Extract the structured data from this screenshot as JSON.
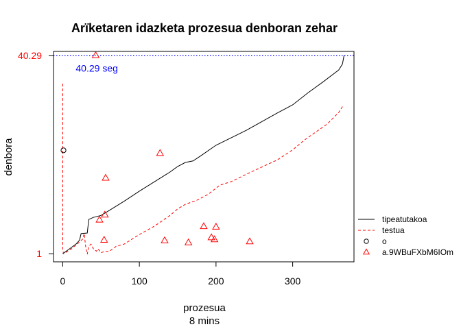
{
  "chart_data": {
    "type": "line",
    "title": "Arïketaren idazketa prozesua denboran zehar",
    "xlabel": "prozesua",
    "xlabel_sub": "8 mins",
    "ylabel": "denbora",
    "xlim": [
      -12,
      380
    ],
    "ylim": [
      -0.6,
      41.1
    ],
    "x_ticks": [
      0,
      100,
      200,
      300
    ],
    "y_ticks": [
      {
        "value": 1,
        "label": "1"
      },
      {
        "value": 40.29,
        "label": "40.29"
      }
    ],
    "reference_line": {
      "y": 40.29,
      "label": "40.29 seg",
      "label_x": 17,
      "label_y": 37.8,
      "color": "#0000ff"
    },
    "series": [
      {
        "name": "tipeatutakoa",
        "style": "solid",
        "color": "#000000",
        "points": [
          [
            0,
            1.0
          ],
          [
            10,
            2.1
          ],
          [
            18,
            3.0
          ],
          [
            22,
            3.7
          ],
          [
            24,
            5.0
          ],
          [
            32,
            5.1
          ],
          [
            34,
            7.8
          ],
          [
            40,
            8.2
          ],
          [
            50,
            8.6
          ],
          [
            60,
            9.5
          ],
          [
            80,
            11.4
          ],
          [
            100,
            13.4
          ],
          [
            120,
            15.3
          ],
          [
            140,
            17.2
          ],
          [
            150,
            18.3
          ],
          [
            160,
            19.1
          ],
          [
            170,
            19.4
          ],
          [
            180,
            20.4
          ],
          [
            200,
            22.5
          ],
          [
            220,
            24.0
          ],
          [
            240,
            25.5
          ],
          [
            260,
            27.2
          ],
          [
            280,
            28.9
          ],
          [
            300,
            30.5
          ],
          [
            320,
            32.9
          ],
          [
            340,
            35.1
          ],
          [
            360,
            37.4
          ],
          [
            365,
            38.6
          ],
          [
            367,
            40.3
          ]
        ]
      },
      {
        "name": "testua",
        "style": "dashed",
        "color": "#ff0000",
        "points": [
          [
            0,
            34.7
          ],
          [
            0,
            2.0
          ],
          [
            1,
            1.0
          ],
          [
            10,
            1.8
          ],
          [
            18,
            2.8
          ],
          [
            26,
            3.9
          ],
          [
            28,
            5.0
          ],
          [
            30,
            2.4
          ],
          [
            32,
            0.9
          ],
          [
            34,
            2.5
          ],
          [
            37,
            2.9
          ],
          [
            40,
            2.0
          ],
          [
            44,
            1.5
          ],
          [
            46,
            2.0
          ],
          [
            50,
            1.2
          ],
          [
            55,
            1.5
          ],
          [
            60,
            1.4
          ],
          [
            70,
            2.5
          ],
          [
            80,
            2.9
          ],
          [
            100,
            4.8
          ],
          [
            120,
            6.5
          ],
          [
            140,
            8.6
          ],
          [
            150,
            9.9
          ],
          [
            160,
            10.8
          ],
          [
            175,
            11.6
          ],
          [
            190,
            12.8
          ],
          [
            205,
            14.6
          ],
          [
            220,
            15.3
          ],
          [
            240,
            16.8
          ],
          [
            260,
            18.2
          ],
          [
            280,
            19.6
          ],
          [
            300,
            21.6
          ],
          [
            315,
            23.5
          ],
          [
            330,
            25.1
          ],
          [
            345,
            26.7
          ],
          [
            360,
            29.0
          ],
          [
            366,
            30.4
          ]
        ]
      },
      {
        "name": "o",
        "style": "points",
        "marker": "circle",
        "color": "#000000",
        "points": [
          [
            1,
            21.5
          ]
        ]
      },
      {
        "name": "a.9WBuFXbM6IOm",
        "style": "points",
        "marker": "triangle",
        "color": "#ff0000",
        "points": [
          [
            43,
            40.3
          ],
          [
            56,
            16.0
          ],
          [
            127,
            20.9
          ],
          [
            55,
            8.7
          ],
          [
            48,
            7.7
          ],
          [
            54,
            3.7
          ],
          [
            133,
            3.6
          ],
          [
            164,
            3.2
          ],
          [
            184,
            6.4
          ],
          [
            194,
            4.2
          ],
          [
            198,
            3.8
          ],
          [
            200,
            6.3
          ],
          [
            244,
            3.4
          ]
        ]
      }
    ],
    "legend": {
      "placement": "right",
      "entries": [
        {
          "label": "tipeatutakoa",
          "type": "line-solid",
          "color": "#000000"
        },
        {
          "label": "testua",
          "type": "line-dashed",
          "color": "#ff0000"
        },
        {
          "label": "o",
          "type": "circle",
          "color": "#000000"
        },
        {
          "label": "a.9WBuFXbM6IOm",
          "type": "triangle",
          "color": "#ff0000"
        }
      ]
    }
  }
}
